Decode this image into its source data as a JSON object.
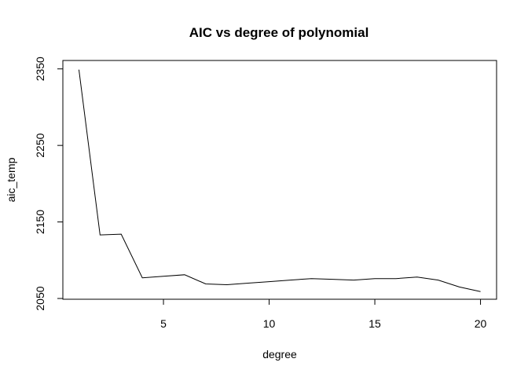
{
  "chart_data": {
    "type": "line",
    "title": "AIC vs degree of polynomial",
    "xlabel": "degree",
    "ylabel": "aic_temp",
    "xlim": [
      0.24,
      20.76
    ],
    "ylim": [
      2049,
      2361
    ],
    "x_ticks": [
      5,
      10,
      15,
      20
    ],
    "y_ticks": [
      2050,
      2150,
      2250,
      2350
    ],
    "x": [
      1,
      2,
      3,
      4,
      5,
      6,
      7,
      8,
      9,
      10,
      11,
      12,
      13,
      14,
      15,
      16,
      17,
      18,
      19,
      20
    ],
    "series": [
      {
        "values": [
          2349,
          2133,
          2134,
          2077,
          2079,
          2081,
          2069,
          2068,
          2070,
          2072,
          2074,
          2076,
          2075,
          2074,
          2076,
          2076,
          2078,
          2074,
          2065,
          2059
        ]
      }
    ],
    "grid": false,
    "legend": "none",
    "line_color": "#000000"
  }
}
